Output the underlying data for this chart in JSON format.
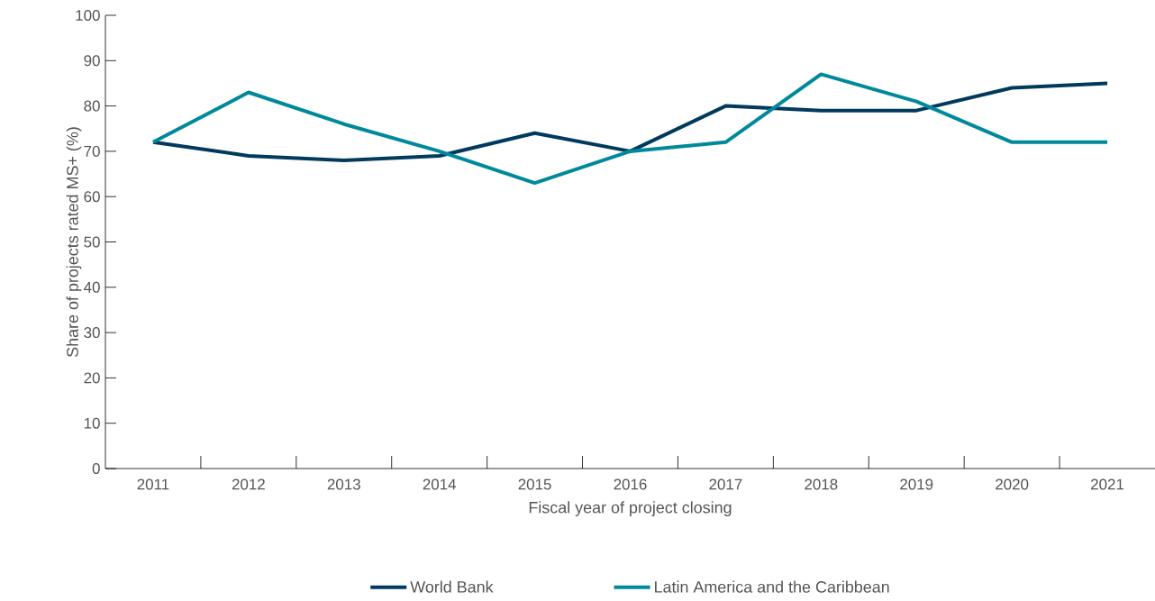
{
  "chart_data": {
    "type": "line",
    "xlabel": "Fiscal year of project closing",
    "ylabel": "Share of projects rated MS+ (%)",
    "categories": [
      "2011",
      "2012",
      "2013",
      "2014",
      "2015",
      "2016",
      "2017",
      "2018",
      "2019",
      "2020",
      "2021"
    ],
    "series": [
      {
        "name": "World Bank",
        "color": "#003a5c",
        "values": [
          72,
          69,
          68,
          69,
          74,
          70,
          80,
          79,
          79,
          84,
          85
        ]
      },
      {
        "name": "Latin America and the Caribbean",
        "color": "#00899b",
        "values": [
          72,
          83,
          76,
          70,
          63,
          70,
          72,
          87,
          81,
          72,
          72
        ]
      }
    ],
    "ylim": [
      0,
      100
    ],
    "yticks": [
      0,
      10,
      20,
      30,
      40,
      50,
      60,
      70,
      80,
      90,
      100
    ],
    "grid": false,
    "legend": "bottom",
    "marker": "none",
    "line_style": "solid"
  }
}
